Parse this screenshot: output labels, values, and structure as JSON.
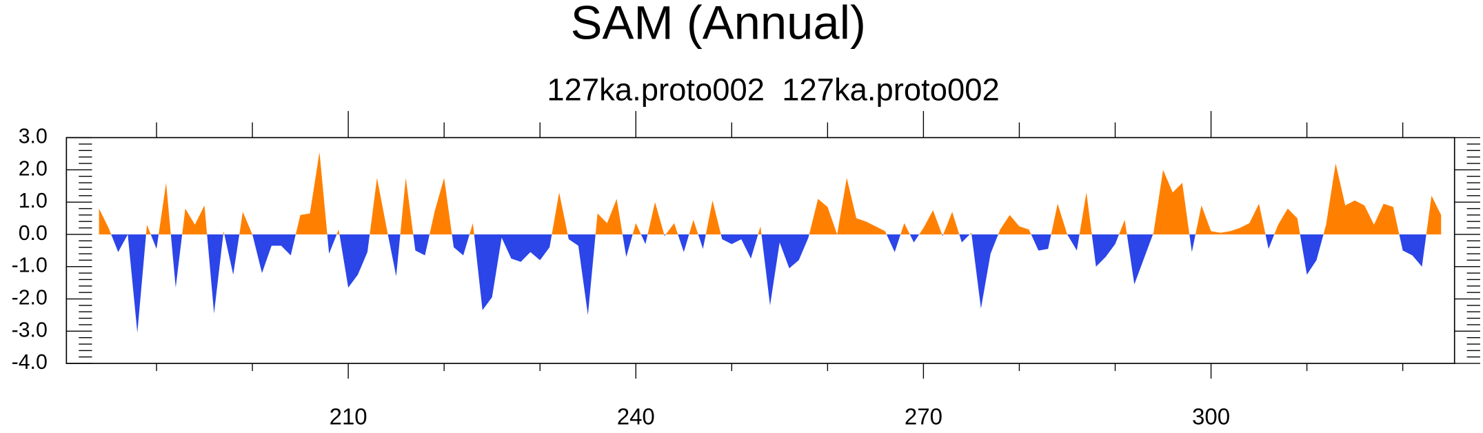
{
  "chart_data": {
    "type": "area",
    "title": "SAM (Annual)",
    "subtitle": "127ka.proto002  127ka.proto002",
    "x": [
      184,
      185,
      186,
      187,
      188,
      189,
      190,
      191,
      192,
      193,
      194,
      195,
      196,
      197,
      198,
      199,
      200,
      201,
      202,
      203,
      204,
      205,
      206,
      207,
      208,
      209,
      210,
      211,
      212,
      213,
      214,
      215,
      216,
      217,
      218,
      219,
      220,
      221,
      222,
      223,
      224,
      225,
      226,
      227,
      228,
      229,
      230,
      231,
      232,
      233,
      234,
      235,
      236,
      237,
      238,
      239,
      240,
      241,
      242,
      243,
      244,
      245,
      246,
      247,
      248,
      249,
      250,
      251,
      252,
      253,
      254,
      255,
      256,
      257,
      258,
      259,
      260,
      261,
      262,
      263,
      264,
      265,
      266,
      267,
      268,
      269,
      270,
      271,
      272,
      273,
      274,
      275,
      276,
      277,
      278,
      279,
      280,
      281,
      282,
      283,
      284,
      285,
      286,
      287,
      288,
      289,
      290,
      291,
      292,
      293,
      294,
      295,
      296,
      297,
      298,
      299,
      300,
      301,
      302,
      303,
      304,
      305,
      306,
      307,
      308,
      309,
      310,
      311,
      312,
      313,
      314,
      315,
      316,
      317,
      318,
      319,
      320,
      321,
      322,
      323,
      324
    ],
    "values": [
      0.8,
      0.2,
      -0.55,
      0.0,
      -3.05,
      0.3,
      -0.45,
      1.6,
      -1.65,
      0.8,
      0.3,
      0.9,
      -2.45,
      0.1,
      -1.25,
      0.7,
      0.0,
      -1.2,
      -0.35,
      -0.35,
      -0.65,
      0.6,
      0.65,
      2.55,
      -0.6,
      0.15,
      -1.65,
      -1.25,
      -0.55,
      1.75,
      0.2,
      -1.3,
      1.75,
      -0.5,
      -0.65,
      0.7,
      1.75,
      -0.4,
      -0.65,
      0.35,
      -2.35,
      -1.95,
      -0.1,
      -0.75,
      -0.85,
      -0.55,
      -0.8,
      -0.4,
      1.3,
      -0.15,
      -0.35,
      -2.5,
      0.65,
      0.35,
      1.1,
      -0.7,
      0.35,
      -0.3,
      1.0,
      -0.05,
      0.35,
      -0.55,
      0.45,
      -0.45,
      1.05,
      -0.15,
      -0.3,
      -0.15,
      -0.75,
      0.25,
      -2.2,
      -0.25,
      -1.05,
      -0.8,
      -0.1,
      1.1,
      0.85,
      0.0,
      1.75,
      0.5,
      0.4,
      0.25,
      0.1,
      -0.55,
      0.35,
      -0.25,
      0.2,
      0.75,
      -0.05,
      0.7,
      -0.25,
      0.05,
      -2.3,
      -0.6,
      0.15,
      0.6,
      0.25,
      0.15,
      -0.5,
      -0.45,
      0.95,
      0.0,
      -0.5,
      1.3,
      -1.0,
      -0.7,
      -0.3,
      0.45,
      -1.55,
      -0.75,
      0.05,
      2.0,
      1.3,
      1.6,
      -0.55,
      0.9,
      0.1,
      0.05,
      0.1,
      0.2,
      0.35,
      0.95,
      -0.45,
      0.3,
      0.8,
      0.5,
      -1.25,
      -0.8,
      0.3,
      2.2,
      0.9,
      1.05,
      0.9,
      0.3,
      0.95,
      0.85,
      -0.5,
      -0.65,
      -1.0,
      1.2,
      0.6
    ],
    "positive_color": "#ff8000",
    "negative_color": "#2b45e8",
    "xlim": [
      180.6,
      325.4
    ],
    "xticks": [
      210,
      240,
      270,
      300
    ],
    "ylim": [
      -4.0,
      3.0
    ],
    "yticks": [
      {
        "value": -4,
        "label": "-4.0"
      },
      {
        "value": -3,
        "label": "-3.0"
      },
      {
        "value": -2,
        "label": "-2.0"
      },
      {
        "value": -1,
        "label": "-1.0"
      },
      {
        "value": 0,
        "label": "0.0"
      },
      {
        "value": 1,
        "label": "1.0"
      },
      {
        "value": 2,
        "label": "2.0"
      },
      {
        "value": 3,
        "label": "3.0"
      }
    ]
  }
}
